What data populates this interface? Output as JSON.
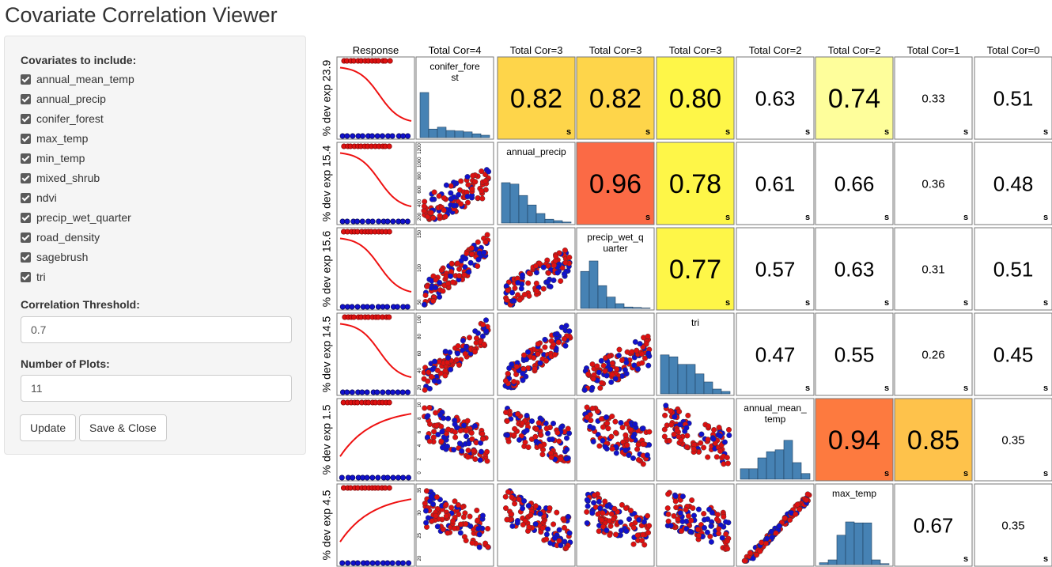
{
  "app": {
    "title": "Covariate Correlation Viewer"
  },
  "sidebar": {
    "covariates_label": "Covariates to include:",
    "covariates": [
      {
        "name": "annual_mean_temp",
        "checked": true
      },
      {
        "name": "annual_precip",
        "checked": true
      },
      {
        "name": "conifer_forest",
        "checked": true
      },
      {
        "name": "max_temp",
        "checked": true
      },
      {
        "name": "min_temp",
        "checked": true
      },
      {
        "name": "mixed_shrub",
        "checked": true
      },
      {
        "name": "ndvi",
        "checked": true
      },
      {
        "name": "precip_wet_quarter",
        "checked": true
      },
      {
        "name": "road_density",
        "checked": true
      },
      {
        "name": "sagebrush",
        "checked": true
      },
      {
        "name": "tri",
        "checked": true
      }
    ],
    "threshold_label": "Correlation Threshold:",
    "threshold_value": "0.7",
    "plots_label": "Number of Plots:",
    "plots_value": "11",
    "update_label": "Update",
    "save_close_label": "Save & Close"
  },
  "matrix": {
    "response_header": "Response",
    "column_headers": [
      "Total Cor=4",
      "Total Cor=3",
      "Total Cor=3",
      "Total Cor=3",
      "Total Cor=2",
      "Total Cor=2",
      "Total Cor=1",
      "Total Cor=0"
    ],
    "row_labels": [
      "% dev exp 23.9",
      "% dev exp 15.4",
      "% dev exp 15.6",
      "% dev exp 14.5",
      "% dev exp 1.5",
      "% dev exp 4.5"
    ],
    "diagonal_labels": [
      [
        "conifer_fore",
        "st"
      ],
      [
        "annual_precip"
      ],
      [
        "precip_wet_q",
        "uarter"
      ],
      [
        "tri"
      ],
      [
        "annual_mean_",
        "temp"
      ],
      [
        "max_temp"
      ]
    ],
    "response_curves": [
      "down",
      "down",
      "down",
      "down",
      "up",
      "up"
    ],
    "cor_marker": "s",
    "correlations": [
      [
        null,
        "0.82",
        "0.82",
        "0.80",
        "0.63",
        "0.74",
        "0.33",
        "0.51"
      ],
      [
        null,
        null,
        "0.96",
        "0.78",
        "0.61",
        "0.66",
        "0.36",
        "0.48"
      ],
      [
        null,
        null,
        null,
        "0.77",
        "0.57",
        "0.63",
        "0.31",
        "0.51"
      ],
      [
        null,
        null,
        null,
        null,
        "0.47",
        "0.55",
        "0.26",
        "0.45"
      ],
      [
        null,
        null,
        null,
        null,
        null,
        "0.94",
        "0.85",
        "0.35"
      ],
      [
        null,
        null,
        null,
        null,
        null,
        null,
        "0.67",
        "0.35"
      ]
    ],
    "cell_colors": [
      [
        null,
        "#fed54a",
        "#fed54a",
        "#fef648",
        null,
        "#fefe9b",
        null,
        null
      ],
      [
        null,
        null,
        "#fb6a45",
        "#fef648",
        null,
        null,
        null,
        null
      ],
      [
        null,
        null,
        null,
        "#fef648",
        null,
        null,
        null,
        null
      ],
      [
        null,
        null,
        null,
        null,
        null,
        null,
        null,
        null
      ],
      [
        null,
        null,
        null,
        null,
        null,
        "#fd7a3f",
        "#fec24b",
        null
      ],
      [
        null,
        null,
        null,
        null,
        null,
        null,
        null,
        null
      ]
    ],
    "histograms": [
      [
        0.95,
        0.18,
        0.22,
        0.15,
        0.14,
        0.12,
        0.08,
        0.05
      ],
      [
        0.85,
        0.82,
        0.58,
        0.38,
        0.2,
        0.08,
        0.05,
        0.02
      ],
      [
        0.78,
        1.0,
        0.48,
        0.24,
        0.1,
        0.03,
        0.02,
        0.01
      ],
      [
        0.82,
        0.78,
        0.62,
        0.62,
        0.42,
        0.25,
        0.1,
        0.05
      ],
      [
        0.22,
        0.22,
        0.45,
        0.58,
        0.62,
        0.82,
        0.35,
        0.12
      ],
      [
        0.04,
        0.1,
        0.62,
        0.9,
        0.88,
        0.88,
        0.1,
        0.02
      ]
    ],
    "scatter_y_ticks": [
      [
        "200",
        "400",
        "600",
        "800",
        "1000",
        "1200"
      ],
      [
        "50",
        "100",
        "150"
      ],
      [
        "20",
        "40",
        "60",
        "80",
        "100"
      ],
      [
        "0",
        "2",
        "4",
        "6",
        "8",
        "10"
      ],
      [
        "20",
        "25",
        "30",
        "35"
      ]
    ],
    "colors": {
      "group_a": "#dd1111",
      "group_b": "#1111cc",
      "histogram": "#4682b4",
      "curve": "#ee1111"
    }
  }
}
